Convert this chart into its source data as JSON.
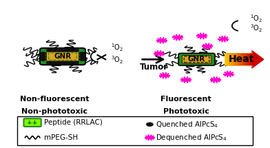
{
  "bg_color": "#ffffff",
  "gnr_color": "#DAA520",
  "gnr_border_color": "#228B22",
  "peptide_box_color": "#7FFF00",
  "quenched_color": "#111111",
  "dequenched_color": "#FF00CC",
  "left_label1": "Non-fluorescent",
  "left_label2": "Non-phototoxic",
  "right_label1": "Fluorescent",
  "right_label2": "Phototoxic",
  "arrow_label": "Tumor",
  "heat_label": "Heat",
  "gnr_text": "GNR",
  "fig_width": 3.92,
  "fig_height": 2.15,
  "dpi": 100
}
